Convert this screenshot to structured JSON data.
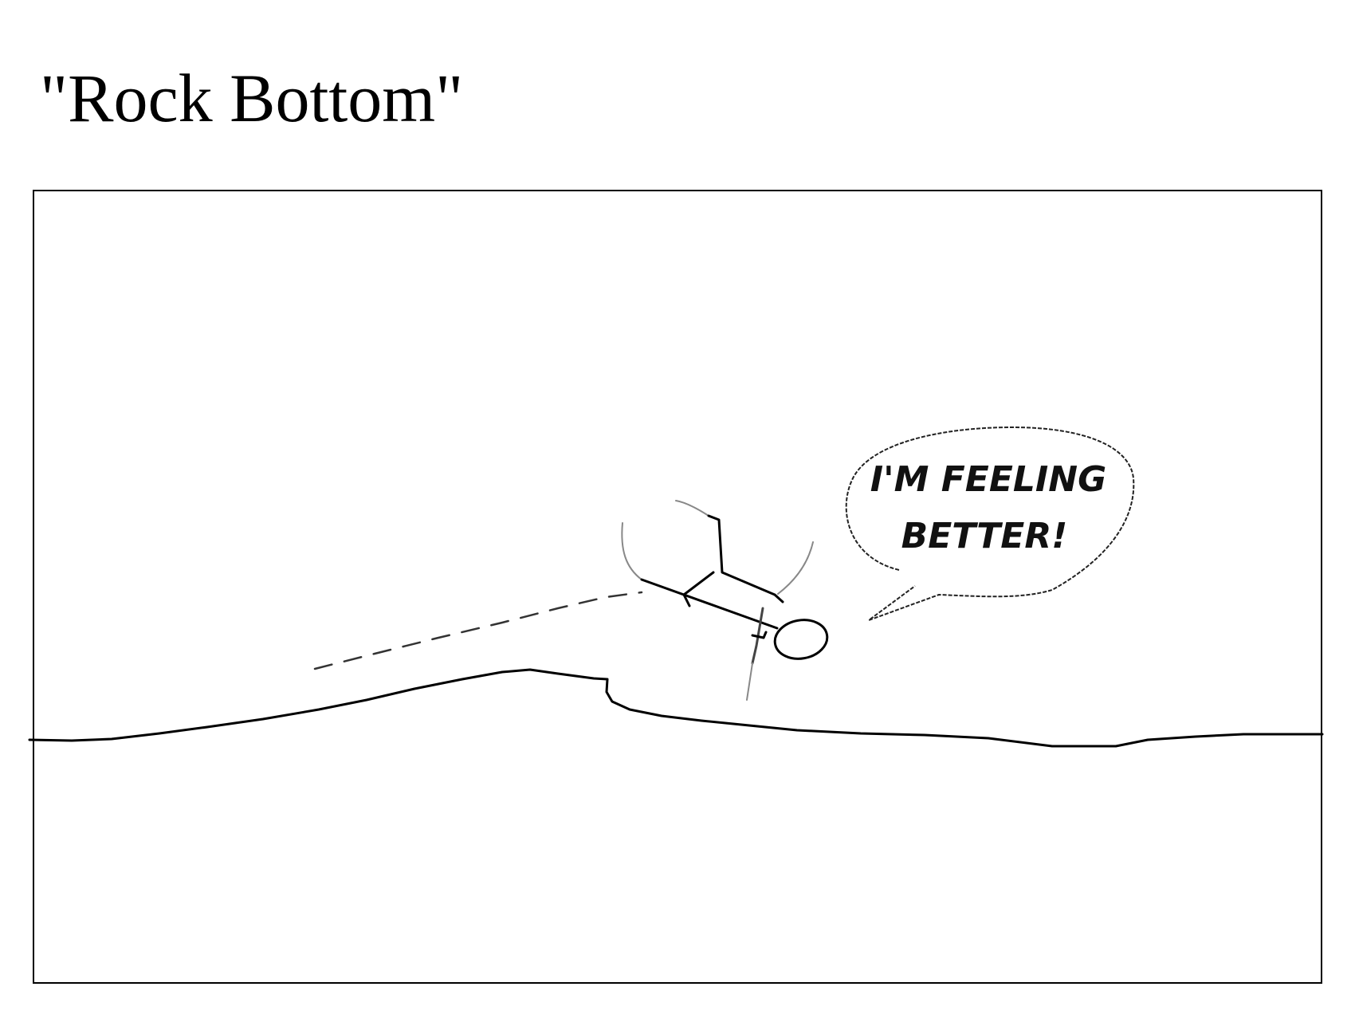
{
  "title": "\"Rock Bottom\"",
  "speech_bubble": {
    "line1": "I'M FEELING",
    "line2": "BETTER!"
  },
  "colors": {
    "ink": "#000000",
    "background": "#ffffff"
  }
}
